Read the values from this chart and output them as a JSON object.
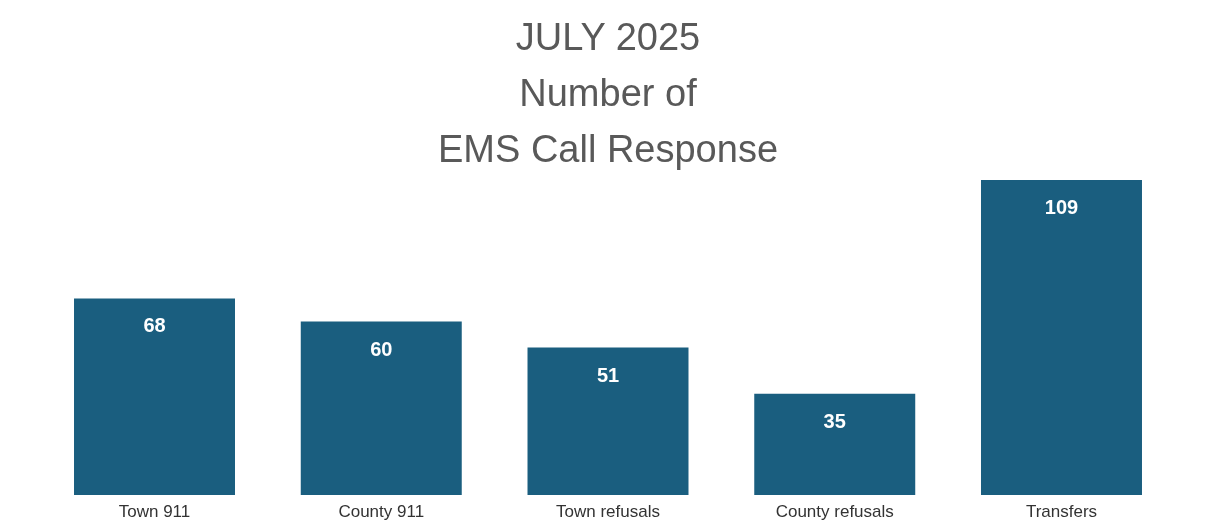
{
  "chart_data": {
    "type": "bar",
    "title": "JULY 2025\nNumber of\nEMS Call Response",
    "categories": [
      "Town 911",
      "County 911",
      "Town refusals",
      "County refusals",
      "Transfers"
    ],
    "values": [
      68,
      60,
      51,
      35,
      109
    ],
    "color": "#1a5e7f",
    "data_labels": true
  }
}
